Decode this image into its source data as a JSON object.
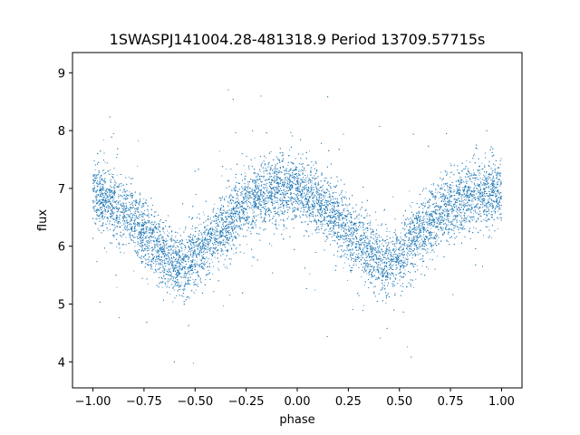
{
  "chart_data": {
    "type": "scatter",
    "title": "1SWASPJ141004.28-481318.9 Period 13709.57715s",
    "xlabel": "phase",
    "ylabel": "flux",
    "xlim": [
      -1.1,
      1.1
    ],
    "ylim": [
      3.55,
      9.35
    ],
    "x_ticks": [
      -1.0,
      -0.75,
      -0.5,
      -0.25,
      0.0,
      0.25,
      0.5,
      0.75,
      1.0
    ],
    "x_tick_labels": [
      "−1.00",
      "−0.75",
      "−0.50",
      "−0.25",
      "0.00",
      "0.25",
      "0.50",
      "0.75",
      "1.00"
    ],
    "y_ticks": [
      4,
      5,
      6,
      7,
      8,
      9
    ],
    "y_tick_labels": [
      "4",
      "5",
      "6",
      "7",
      "8",
      "9"
    ],
    "grid": false,
    "legend": "none",
    "point_color": "#1f77b4",
    "series": [
      {
        "x": [
          -1.0,
          -0.9,
          -0.8,
          -0.7,
          -0.6,
          -0.55,
          -0.5,
          -0.4,
          -0.3,
          -0.2,
          -0.1,
          0.0,
          0.1,
          0.2,
          0.3,
          0.4,
          0.45,
          0.5,
          0.6,
          0.7,
          0.8,
          0.9,
          1.0
        ],
        "y": [
          6.9,
          6.75,
          6.45,
          6.05,
          5.7,
          5.65,
          5.8,
          6.2,
          6.55,
          6.85,
          7.0,
          6.95,
          6.75,
          6.45,
          6.1,
          5.75,
          5.65,
          5.8,
          6.2,
          6.55,
          6.8,
          6.95,
          6.95
        ],
        "scatter_sigma": 0.28,
        "point_count": 16000
      }
    ]
  }
}
